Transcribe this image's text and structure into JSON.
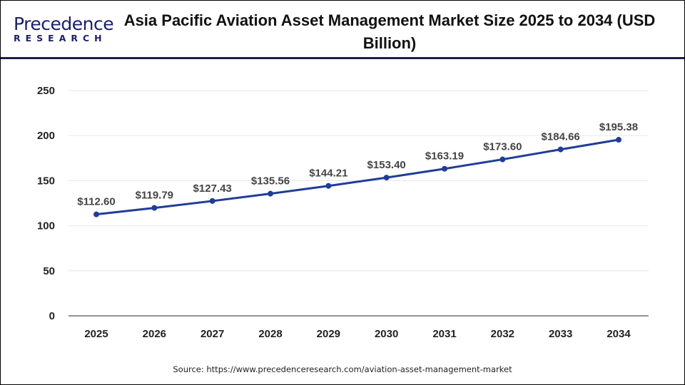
{
  "logo": {
    "line1": "Precedence",
    "line2": "RESEARCH"
  },
  "chart_data": {
    "type": "line",
    "title": "Asia Pacific Aviation Asset Management Market Size 2025 to 2034 (USD Billion)",
    "categories": [
      "2025",
      "2026",
      "2027",
      "2028",
      "2029",
      "2030",
      "2031",
      "2032",
      "2033",
      "2034"
    ],
    "values": [
      112.6,
      119.79,
      127.43,
      135.56,
      144.21,
      153.4,
      163.19,
      173.6,
      184.66,
      195.38
    ],
    "data_labels": [
      "$112.60",
      "$119.79",
      "$127.43",
      "$135.56",
      "$144.21",
      "$153.40",
      "$163.19",
      "$173.60",
      "$184.66",
      "$195.38"
    ],
    "yticks": [
      "0",
      "50",
      "100",
      "150",
      "200",
      "250"
    ],
    "ylim": [
      0,
      250
    ],
    "grid": true,
    "line_color": "#1f3d99",
    "xlabel": "",
    "ylabel": ""
  },
  "source": "Source: https://www.precedenceresearch.com/aviation-asset-management-market"
}
